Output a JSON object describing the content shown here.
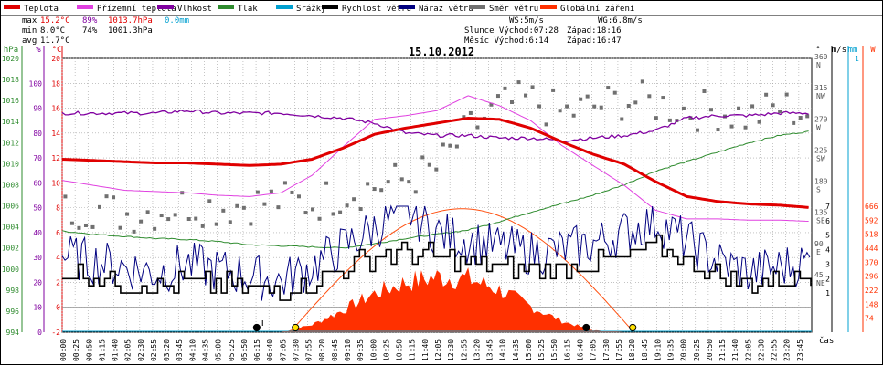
{
  "legend": {
    "items": [
      {
        "label": "Teplota",
        "color": "#e00000"
      },
      {
        "label": "Přízemní teplota",
        "color": "#e040e0"
      },
      {
        "label": "Vlhkost",
        "color": "#8000a0"
      },
      {
        "label": "Tlak",
        "color": "#2e8b2e"
      },
      {
        "label": "Srážky",
        "color": "#00a0d0"
      },
      {
        "label": "Rychlost větru",
        "color": "#000000"
      },
      {
        "label": "Náraz větru",
        "color": "#000080"
      },
      {
        "label": "Směr větru",
        "color": "#707070"
      },
      {
        "label": "Globální záření",
        "color": "#ff3000"
      }
    ]
  },
  "stats": {
    "max_label": "max",
    "max_temp": "15.2°C",
    "max_hum": "89%",
    "max_press": "1013.7hPa",
    "max_rain": "0.0mm",
    "min_label": "min",
    "min_temp": "8.0°C",
    "min_hum": "74%",
    "min_press": "1001.3hPa",
    "avg_label": "avg",
    "avg_temp": "11.7°C",
    "ws": "WS:5m/s",
    "wg": "WG:6.8m/s",
    "sun": "Slunce Východ:07:28",
    "sun_set": "Západ:18:16",
    "moon": "Měsíc Východ:6:14",
    "moon_set": "Západ:16:47"
  },
  "date": "15.10.2012",
  "colors": {
    "temp": "#e00000",
    "ground": "#e040e0",
    "humidity": "#8000a0",
    "pressure": "#2e8b2e",
    "rain": "#00a0d0",
    "wind": "#000000",
    "gust": "#000080",
    "dir": "#707070",
    "rad": "#ff3000",
    "grid": "#a0a0a0",
    "zero": "#909090"
  },
  "axes": {
    "hpa_unit": "hPa",
    "hum_unit": "%",
    "temp_unit": "°C",
    "dir_unit": "°",
    "ms_unit": "m/s",
    "mm_unit": "mm",
    "wm_unit": "W",
    "time_unit": "čas",
    "hpa_ticks": [
      "994",
      "996",
      "998",
      "1000",
      "1002",
      "1004",
      "1006",
      "1008",
      "1010",
      "1012",
      "1014",
      "1016",
      "1018",
      "1020"
    ],
    "hum_ticks": [
      "0",
      "10",
      "20",
      "30",
      "40",
      "50",
      "60",
      "70",
      "80",
      "90",
      "100"
    ],
    "temp_ticks": [
      "-2",
      "0",
      "2",
      "4",
      "6",
      "8",
      "10",
      "12",
      "14",
      "16",
      "18",
      "20"
    ],
    "dir_ticks": [
      {
        "deg": "360",
        "card": "N"
      },
      {
        "deg": "315",
        "card": "NW"
      },
      {
        "deg": "270",
        "card": "W"
      },
      {
        "deg": "225",
        "card": "SW"
      },
      {
        "deg": "180",
        "card": "S"
      },
      {
        "deg": "135",
        "card": "SE"
      },
      {
        "deg": "90",
        "card": "E"
      },
      {
        "deg": "45",
        "card": "NE"
      }
    ],
    "ms_ticks": [
      "1",
      "2",
      "3",
      "4",
      "5",
      "6",
      "7"
    ],
    "mm_top": "1",
    "wm_ticks": [
      "74",
      "148",
      "222",
      "296",
      "370",
      "444",
      "518",
      "592",
      "666"
    ],
    "time_ticks": [
      "00:00",
      "00:25",
      "00:50",
      "01:15",
      "01:40",
      "02:05",
      "02:30",
      "02:55",
      "03:20",
      "03:45",
      "04:10",
      "04:35",
      "05:00",
      "05:25",
      "05:50",
      "06:15",
      "06:40",
      "07:05",
      "07:30",
      "07:55",
      "08:20",
      "08:45",
      "09:10",
      "09:35",
      "10:00",
      "10:25",
      "10:50",
      "11:15",
      "11:40",
      "12:05",
      "12:30",
      "12:55",
      "13:20",
      "13:45",
      "14:10",
      "14:35",
      "15:00",
      "15:25",
      "15:50",
      "16:15",
      "16:40",
      "17:05",
      "17:30",
      "17:55",
      "18:20",
      "18:45",
      "19:10",
      "19:35",
      "20:00",
      "20:25",
      "20:50",
      "21:15",
      "21:40",
      "22:05",
      "22:30",
      "22:55",
      "23:20",
      "23:45"
    ]
  },
  "chart_data": {
    "type": "line",
    "title": "15.10.2012",
    "x_range_hours": [
      0,
      24
    ],
    "temp_range_c": [
      -2,
      20
    ],
    "series": [
      {
        "name": "Teplota",
        "unit": "°C",
        "x": [
          0,
          1,
          2,
          3,
          4,
          5,
          6,
          7,
          8,
          9,
          10,
          11,
          12,
          13,
          14,
          15,
          16,
          17,
          18,
          19,
          20,
          21,
          22,
          23,
          24
        ],
        "values": [
          11.9,
          11.8,
          11.7,
          11.6,
          11.6,
          11.5,
          11.4,
          11.5,
          11.9,
          12.8,
          13.9,
          14.4,
          14.8,
          15.2,
          15.1,
          14.4,
          13.3,
          12.3,
          11.5,
          10.1,
          8.9,
          8.5,
          8.3,
          8.2,
          8.0
        ]
      },
      {
        "name": "Přízemní teplota",
        "unit": "°C",
        "x": [
          0,
          1,
          2,
          3,
          4,
          5,
          6,
          7,
          8,
          9,
          10,
          11,
          12,
          13,
          14,
          15,
          16,
          17,
          18,
          19,
          20,
          21,
          22,
          23,
          24
        ],
        "values": [
          10.2,
          9.8,
          9.4,
          9.3,
          9.2,
          9.0,
          8.9,
          9.2,
          10.6,
          12.9,
          15.1,
          15.4,
          15.8,
          17.0,
          16.2,
          15.0,
          13.0,
          11.4,
          9.8,
          7.8,
          7.1,
          7.1,
          7.0,
          7.0,
          6.9
        ]
      },
      {
        "name": "Vlhkost",
        "unit": "%",
        "x": [
          0,
          1,
          2,
          3,
          4,
          5,
          6,
          7,
          8,
          9,
          10,
          11,
          12,
          13,
          14,
          15,
          16,
          17,
          18,
          19,
          20,
          21,
          22,
          23,
          24
        ],
        "values": [
          88,
          88,
          88,
          88,
          89,
          88,
          88,
          88,
          87,
          86,
          84,
          80,
          79,
          79,
          78,
          78,
          77,
          78,
          79,
          81,
          86,
          87,
          87,
          88,
          88
        ]
      },
      {
        "name": "Tlak",
        "unit": "hPa",
        "x": [
          0,
          1,
          2,
          3,
          4,
          5,
          6,
          7,
          8,
          9,
          10,
          11,
          12,
          13,
          14,
          15,
          16,
          17,
          18,
          19,
          20,
          21,
          22,
          23,
          24
        ],
        "values": [
          1003.6,
          1003.3,
          1003.1,
          1002.9,
          1002.8,
          1002.6,
          1002.3,
          1002.2,
          1002.1,
          1002.0,
          1002.4,
          1002.9,
          1003.3,
          1003.7,
          1004.5,
          1005.4,
          1006.2,
          1007.0,
          1008.0,
          1009.3,
          1010.2,
          1011.1,
          1012.0,
          1012.7,
          1013.1
        ]
      },
      {
        "name": "Rychlost větru",
        "unit": "m/s",
        "x": [
          0,
          1,
          2,
          3,
          4,
          5,
          6,
          7,
          8,
          9,
          10,
          11,
          12,
          13,
          14,
          15,
          16,
          17,
          18,
          19,
          20,
          21,
          22,
          23,
          24
        ],
        "values": [
          2.5,
          2.2,
          1.8,
          1.6,
          1.8,
          1.6,
          1.4,
          1.2,
          1.8,
          2.6,
          3.6,
          3.8,
          3.4,
          3.2,
          2.8,
          2.6,
          2.8,
          3.0,
          3.4,
          4.2,
          3.2,
          2.2,
          1.6,
          1.8,
          2.2
        ]
      },
      {
        "name": "Náraz větru",
        "unit": "m/s",
        "x": [
          0,
          1,
          2,
          3,
          4,
          5,
          6,
          7,
          8,
          9,
          10,
          11,
          12,
          13,
          14,
          15,
          16,
          17,
          18,
          19,
          20,
          21,
          22,
          23,
          24
        ],
        "values": [
          3.6,
          3.2,
          2.8,
          2.4,
          3.0,
          2.6,
          2.2,
          1.8,
          2.8,
          4.2,
          5.5,
          6.8,
          5.2,
          4.6,
          4.2,
          3.8,
          4.0,
          4.4,
          5.2,
          6.0,
          4.6,
          3.2,
          2.4,
          2.8,
          3.2
        ]
      },
      {
        "name": "Směr větru",
        "unit": "°",
        "x": [
          0,
          1,
          2,
          3,
          4,
          5,
          6,
          7,
          8,
          9,
          10,
          11,
          12,
          13,
          14,
          15,
          16,
          17,
          18,
          19,
          20,
          21,
          22,
          23,
          24
        ],
        "values": [
          140,
          145,
          135,
          140,
          150,
          145,
          150,
          155,
          150,
          165,
          175,
          185,
          200,
          255,
          290,
          300,
          280,
          290,
          300,
          295,
          285,
          285,
          275,
          290,
          280
        ]
      },
      {
        "name": "Globální záření",
        "unit": "W/m²",
        "x": [
          7,
          8,
          9,
          10,
          11,
          12,
          13,
          14,
          15,
          16,
          17,
          18
        ],
        "values": [
          0,
          40,
          120,
          210,
          270,
          300,
          290,
          230,
          140,
          60,
          10,
          0
        ]
      }
    ],
    "precipitation_mm": 0.0
  }
}
